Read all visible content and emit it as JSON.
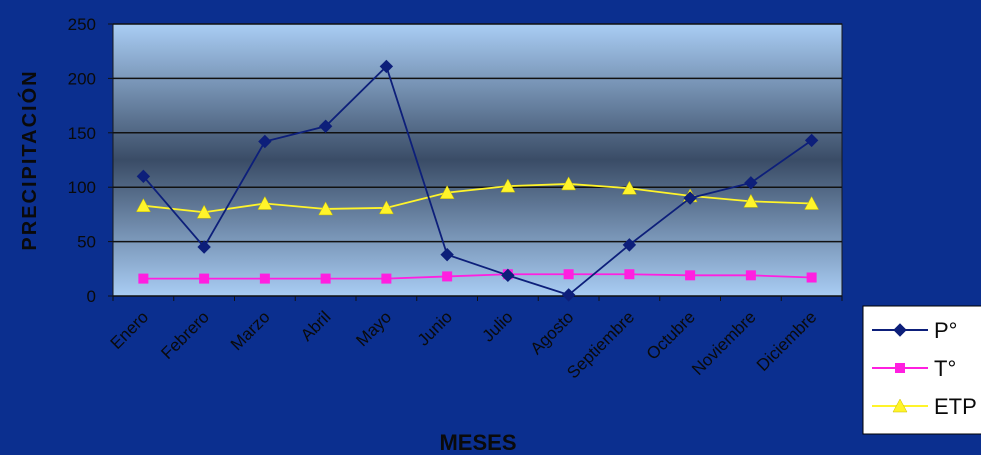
{
  "chart_data": {
    "type": "line",
    "title": "",
    "xlabel": "MESES",
    "ylabel": "PRECIPITACIÓN",
    "categories": [
      "Enero",
      "Febrero",
      "Marzo",
      "Abril",
      "Mayo",
      "Junio",
      "Julio",
      "Agosto",
      "Septiembre",
      "Octubre",
      "Noviembre",
      "Diciembre"
    ],
    "yticks": [
      "0",
      "50",
      "100",
      "150",
      "200",
      "250"
    ],
    "ylim": [
      0,
      250
    ],
    "grid": true,
    "legend_position": "bottom-right",
    "series": [
      {
        "name": "P°",
        "color": "#0d1f7a",
        "marker": "diamond",
        "values": [
          110,
          45,
          142,
          156,
          211,
          38,
          19,
          1,
          47,
          90,
          104,
          143
        ]
      },
      {
        "name": "T°",
        "color": "#ff1fe0",
        "marker": "square",
        "values": [
          16,
          16,
          16,
          16,
          16,
          18,
          20,
          20,
          20,
          19,
          19,
          17
        ]
      },
      {
        "name": "ETP",
        "color": "#fff42a",
        "marker": "triangle",
        "values": [
          83,
          77,
          85,
          80,
          81,
          95,
          101,
          103,
          99,
          92,
          87,
          85
        ]
      }
    ]
  }
}
